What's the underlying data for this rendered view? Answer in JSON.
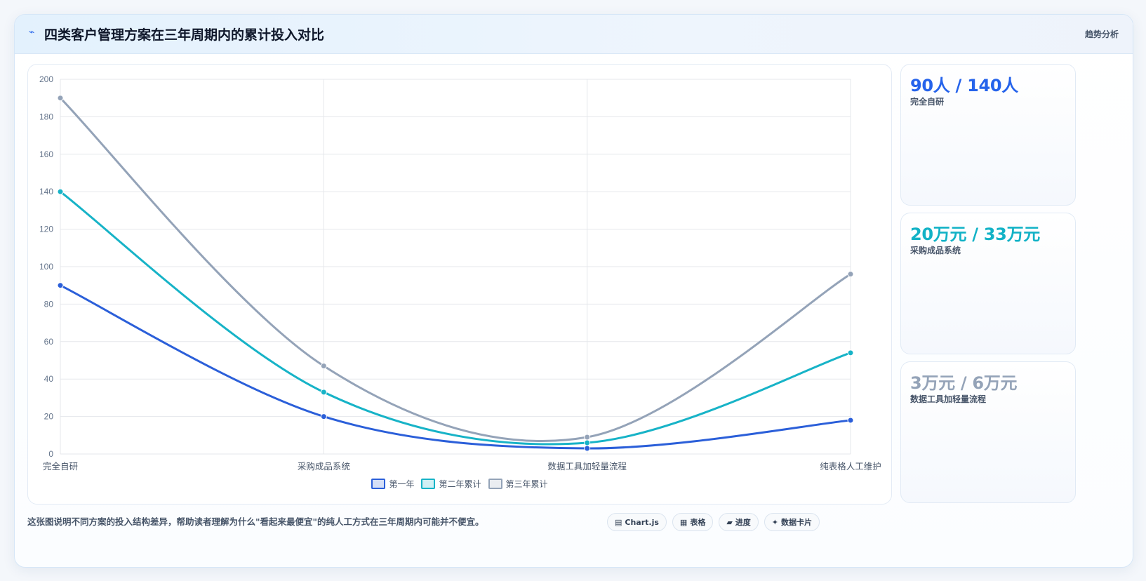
{
  "header": {
    "title": "四类客户管理方案在三年周期内的累计投入对比",
    "tag": "趋势分析"
  },
  "chart_data": {
    "type": "line",
    "categories": [
      "完全自研",
      "采购成品系统",
      "数据工具加轻量流程",
      "纯表格人工维护"
    ],
    "series": [
      {
        "name": "第一年",
        "values": [
          90,
          20,
          3,
          18
        ],
        "color": "#2b5fd9"
      },
      {
        "name": "第二年累计",
        "values": [
          140,
          33,
          6,
          54
        ],
        "color": "#17b3c7"
      },
      {
        "name": "第三年累计",
        "values": [
          190,
          47,
          9,
          96
        ],
        "color": "#94a3b8"
      }
    ],
    "ylim": [
      0,
      200
    ],
    "yticks": [
      0,
      20,
      40,
      60,
      80,
      100,
      120,
      140,
      160,
      180,
      200
    ],
    "grid": true,
    "legend": "bottom-center",
    "title": "",
    "xlabel": "",
    "ylabel": ""
  },
  "cards": [
    {
      "value": "90人 / 140人",
      "label": "完全自研",
      "color": "#2563eb"
    },
    {
      "value": "20万元 / 33万元",
      "label": "采购成品系统",
      "color": "#12b2c6"
    },
    {
      "value": "3万元 / 6万元",
      "label": "数据工具加轻量流程",
      "color": "#94a3b8"
    }
  ],
  "footer": {
    "note": "这张图说明不同方案的投入结构差异，帮助读者理解为什么\"看起来最便宜\"的纯人工方式在三年周期内可能并不便宜。",
    "chips": [
      {
        "icon": "chart-icon",
        "glyph": "▤",
        "label": "Chart.js"
      },
      {
        "icon": "table-icon",
        "glyph": "▦",
        "label": "表格"
      },
      {
        "icon": "progress-icon",
        "glyph": "▰",
        "label": "进度"
      },
      {
        "icon": "sparkle-icon",
        "glyph": "✦",
        "label": "数据卡片"
      }
    ]
  }
}
